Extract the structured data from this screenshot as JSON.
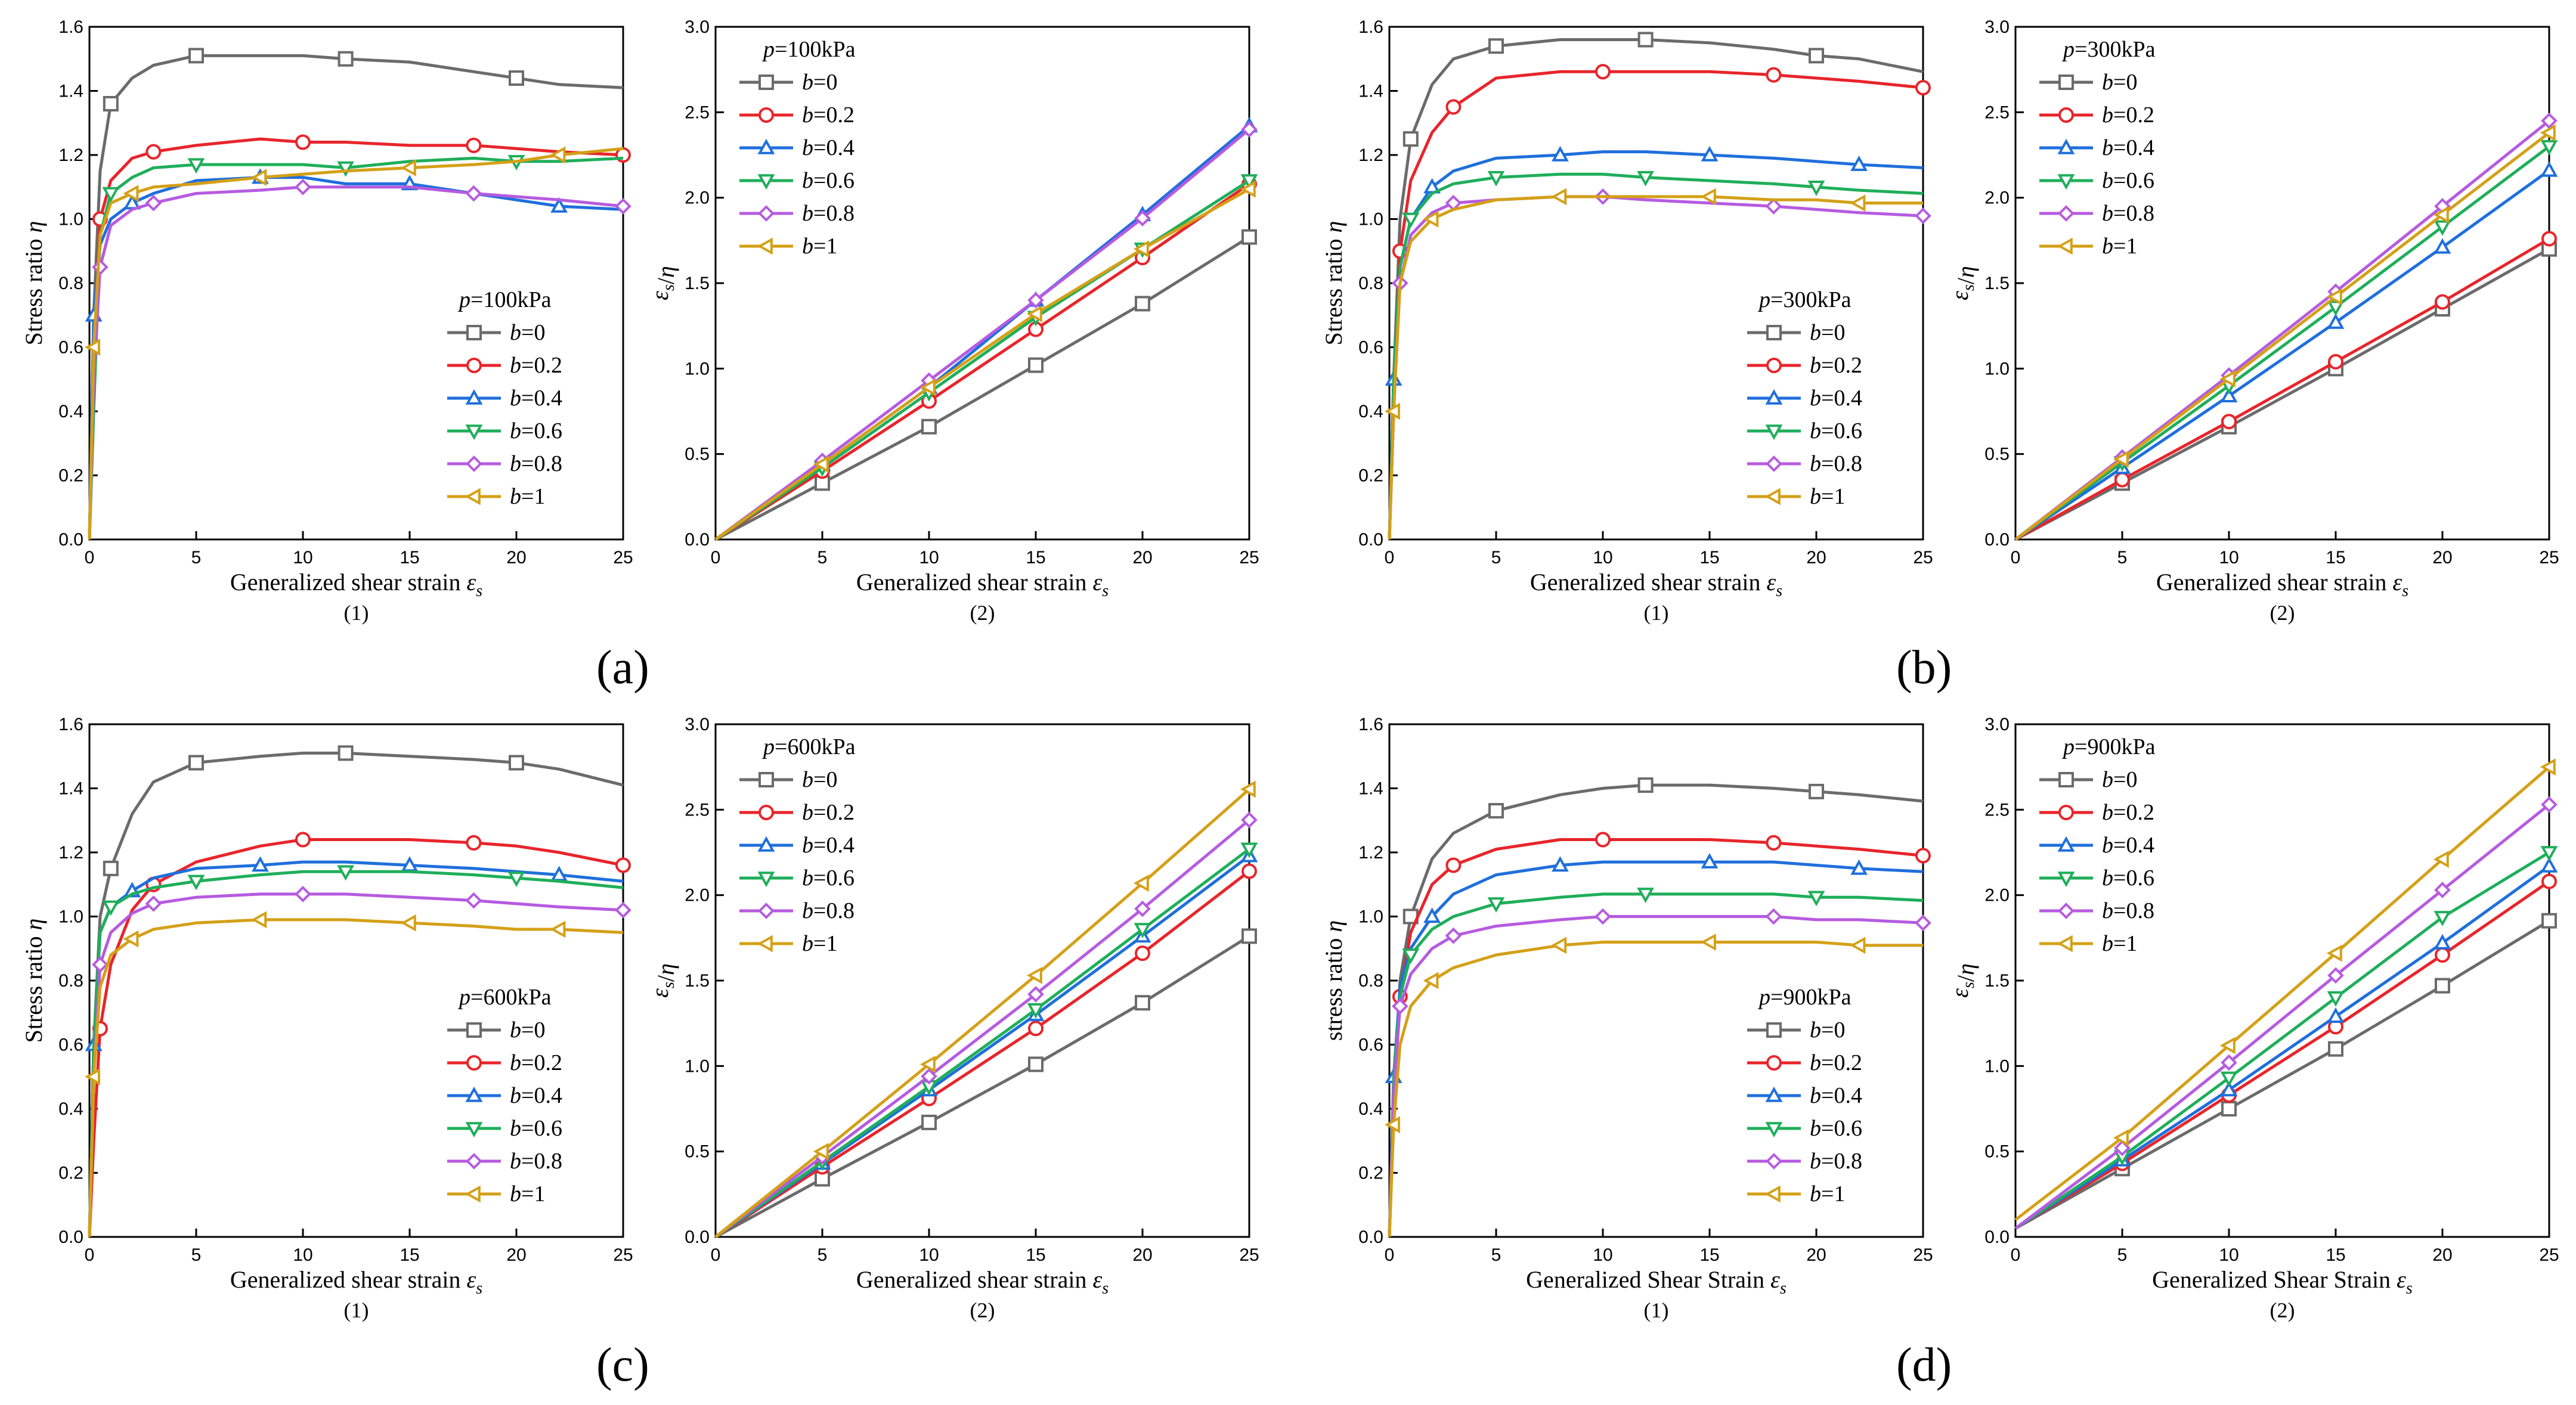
{
  "series_styles": [
    {
      "name": "b=0",
      "color": "#6b6b6b",
      "marker": "square"
    },
    {
      "name": "b=0.2",
      "color": "#e8252b",
      "marker": "circle"
    },
    {
      "name": "b=0.4",
      "color": "#1f6fdc",
      "marker": "triangle-up"
    },
    {
      "name": "b=0.6",
      "color": "#1fae5a",
      "marker": "triangle-down"
    },
    {
      "name": "b=0.8",
      "color": "#b65be0",
      "marker": "diamond"
    },
    {
      "name": "b=1",
      "color": "#d4a017",
      "marker": "triangle-left"
    }
  ],
  "panels": [
    {
      "letter": "(a)",
      "pressure": "p=100kPa"
    },
    {
      "letter": "(b)",
      "pressure": "p=300kPa"
    },
    {
      "letter": "(c)",
      "pressure": "p=600kPa"
    },
    {
      "letter": "(d)",
      "pressure": "p=900kPa"
    }
  ],
  "chart_data": [
    {
      "type": "line",
      "panel": "(a)",
      "sublabel": "(1)",
      "legend_title": "p=100kPa",
      "legend_position": "bottom-right",
      "xlabel": "Generalized shear strain  εs",
      "ylabel": "Stress ratio η",
      "xlim": [
        0,
        25
      ],
      "ylim": [
        0,
        1.6
      ],
      "xticks": [
        0,
        5,
        10,
        15,
        20,
        25
      ],
      "yticks": [
        0,
        0.2,
        0.4,
        0.6,
        0.8,
        1.0,
        1.2,
        1.4,
        1.6
      ],
      "x": [
        0,
        0.2,
        0.5,
        1,
        2,
        3,
        5,
        8,
        10,
        12,
        15,
        18,
        20,
        22,
        25
      ],
      "series": [
        {
          "name": "b=0",
          "values": [
            0,
            0.7,
            1.15,
            1.36,
            1.44,
            1.48,
            1.51,
            1.51,
            1.51,
            1.5,
            1.49,
            1.46,
            1.44,
            1.42,
            1.41
          ]
        },
        {
          "name": "b=0.2",
          "values": [
            0,
            0.6,
            1.0,
            1.12,
            1.19,
            1.21,
            1.23,
            1.25,
            1.24,
            1.24,
            1.23,
            1.23,
            1.22,
            1.21,
            1.2
          ]
        },
        {
          "name": "b=0.4",
          "values": [
            0,
            0.7,
            0.92,
            1.0,
            1.05,
            1.08,
            1.12,
            1.13,
            1.13,
            1.11,
            1.11,
            1.08,
            1.06,
            1.04,
            1.03
          ]
        },
        {
          "name": "b=0.6",
          "values": [
            0,
            0.4,
            0.95,
            1.08,
            1.13,
            1.16,
            1.17,
            1.17,
            1.17,
            1.16,
            1.18,
            1.19,
            1.18,
            1.18,
            1.19
          ]
        },
        {
          "name": "b=0.8",
          "values": [
            0,
            0.5,
            0.85,
            0.98,
            1.03,
            1.05,
            1.08,
            1.09,
            1.1,
            1.1,
            1.1,
            1.08,
            1.07,
            1.06,
            1.04
          ]
        },
        {
          "name": "b=1",
          "values": [
            0,
            0.6,
            0.95,
            1.05,
            1.08,
            1.1,
            1.11,
            1.13,
            1.14,
            1.15,
            1.16,
            1.17,
            1.18,
            1.2,
            1.22
          ]
        }
      ]
    },
    {
      "type": "line",
      "panel": "(a)",
      "sublabel": "(2)",
      "legend_title": "p=100kPa",
      "legend_position": "top-left",
      "xlabel": "Generalized shear strain  εs",
      "ylabel": "εs/η",
      "xlim": [
        0,
        25
      ],
      "ylim": [
        0,
        3.0
      ],
      "xticks": [
        0,
        5,
        10,
        15,
        20,
        25
      ],
      "yticks": [
        0,
        0.5,
        1.0,
        1.5,
        2.0,
        2.5,
        3.0
      ],
      "x": [
        0,
        5,
        10,
        15,
        20,
        25
      ],
      "series": [
        {
          "name": "b=0",
          "values": [
            0,
            0.33,
            0.66,
            1.02,
            1.38,
            1.77
          ]
        },
        {
          "name": "b=0.2",
          "values": [
            0,
            0.4,
            0.81,
            1.23,
            1.65,
            2.08
          ]
        },
        {
          "name": "b=0.4",
          "values": [
            0,
            0.44,
            0.89,
            1.4,
            1.9,
            2.42
          ]
        },
        {
          "name": "b=0.6",
          "values": [
            0,
            0.42,
            0.86,
            1.3,
            1.7,
            2.1
          ]
        },
        {
          "name": "b=0.8",
          "values": [
            0,
            0.46,
            0.93,
            1.4,
            1.88,
            2.4
          ]
        },
        {
          "name": "b=1",
          "values": [
            0,
            0.44,
            0.89,
            1.32,
            1.7,
            2.05
          ]
        }
      ]
    },
    {
      "type": "line",
      "panel": "(b)",
      "sublabel": "(1)",
      "legend_title": "p=300kPa",
      "legend_position": "bottom-right",
      "xlabel": "Generalized shear strain  εs",
      "ylabel": "Stress ratio η",
      "xlim": [
        0,
        25
      ],
      "ylim": [
        0,
        1.6
      ],
      "xticks": [
        0,
        5,
        10,
        15,
        20,
        25
      ],
      "yticks": [
        0,
        0.2,
        0.4,
        0.6,
        0.8,
        1.0,
        1.2,
        1.4,
        1.6
      ],
      "x": [
        0,
        0.2,
        0.5,
        1,
        2,
        3,
        5,
        8,
        10,
        12,
        15,
        18,
        20,
        22,
        25
      ],
      "series": [
        {
          "name": "b=0",
          "values": [
            0,
            0.5,
            1.0,
            1.25,
            1.42,
            1.5,
            1.54,
            1.56,
            1.56,
            1.56,
            1.55,
            1.53,
            1.51,
            1.5,
            1.46
          ]
        },
        {
          "name": "b=0.2",
          "values": [
            0,
            0.4,
            0.9,
            1.12,
            1.27,
            1.35,
            1.44,
            1.46,
            1.46,
            1.46,
            1.46,
            1.45,
            1.44,
            1.43,
            1.41
          ]
        },
        {
          "name": "b=0.4",
          "values": [
            0,
            0.5,
            0.85,
            1.0,
            1.1,
            1.15,
            1.19,
            1.2,
            1.21,
            1.21,
            1.2,
            1.19,
            1.18,
            1.17,
            1.16
          ]
        },
        {
          "name": "b=0.6",
          "values": [
            0,
            0.5,
            0.85,
            1.0,
            1.08,
            1.11,
            1.13,
            1.14,
            1.14,
            1.13,
            1.12,
            1.11,
            1.1,
            1.09,
            1.08
          ]
        },
        {
          "name": "b=0.8",
          "values": [
            0,
            0.4,
            0.8,
            0.95,
            1.02,
            1.05,
            1.06,
            1.07,
            1.07,
            1.06,
            1.05,
            1.04,
            1.03,
            1.02,
            1.01
          ]
        },
        {
          "name": "b=1",
          "values": [
            0,
            0.4,
            0.8,
            0.93,
            1.0,
            1.03,
            1.06,
            1.07,
            1.07,
            1.07,
            1.07,
            1.06,
            1.06,
            1.05,
            1.05
          ]
        }
      ]
    },
    {
      "type": "line",
      "panel": "(b)",
      "sublabel": "(2)",
      "legend_title": "p=300kPa",
      "legend_position": "top-left",
      "xlabel": "Generalized shear strain  εs",
      "ylabel": "εs/η",
      "xlim": [
        0,
        25
      ],
      "ylim": [
        0,
        3.0
      ],
      "xticks": [
        0,
        5,
        10,
        15,
        20,
        25
      ],
      "yticks": [
        0,
        0.5,
        1.0,
        1.5,
        2.0,
        2.5,
        3.0
      ],
      "x": [
        0,
        5,
        10,
        15,
        20,
        25
      ],
      "series": [
        {
          "name": "b=0",
          "values": [
            0,
            0.33,
            0.66,
            1.0,
            1.35,
            1.7
          ]
        },
        {
          "name": "b=0.2",
          "values": [
            0,
            0.35,
            0.69,
            1.04,
            1.39,
            1.76
          ]
        },
        {
          "name": "b=0.4",
          "values": [
            0,
            0.42,
            0.84,
            1.27,
            1.71,
            2.16
          ]
        },
        {
          "name": "b=0.6",
          "values": [
            0,
            0.45,
            0.9,
            1.36,
            1.83,
            2.3
          ]
        },
        {
          "name": "b=0.8",
          "values": [
            0,
            0.48,
            0.96,
            1.45,
            1.95,
            2.45
          ]
        },
        {
          "name": "b=1",
          "values": [
            0,
            0.47,
            0.94,
            1.42,
            1.9,
            2.38
          ]
        }
      ]
    },
    {
      "type": "line",
      "panel": "(c)",
      "sublabel": "(1)",
      "legend_title": "p=600kPa",
      "legend_position": "bottom-right",
      "xlabel": "Generalized shear strain  εs",
      "ylabel": "Stress ratio η",
      "xlim": [
        0,
        25
      ],
      "ylim": [
        0,
        1.6
      ],
      "xticks": [
        0,
        5,
        10,
        15,
        20,
        25
      ],
      "yticks": [
        0,
        0.2,
        0.4,
        0.6,
        0.8,
        1.0,
        1.2,
        1.4,
        1.6
      ],
      "x": [
        0,
        0.2,
        0.5,
        1,
        2,
        3,
        5,
        8,
        10,
        12,
        15,
        18,
        20,
        22,
        25
      ],
      "series": [
        {
          "name": "b=0",
          "values": [
            0,
            0.6,
            1.0,
            1.15,
            1.32,
            1.42,
            1.48,
            1.5,
            1.51,
            1.51,
            1.5,
            1.49,
            1.48,
            1.46,
            1.41
          ]
        },
        {
          "name": "b=0.2",
          "values": [
            0,
            0.3,
            0.65,
            0.85,
            1.02,
            1.1,
            1.17,
            1.22,
            1.24,
            1.24,
            1.24,
            1.23,
            1.22,
            1.2,
            1.16
          ]
        },
        {
          "name": "b=0.4",
          "values": [
            0,
            0.6,
            0.95,
            1.03,
            1.08,
            1.12,
            1.15,
            1.16,
            1.17,
            1.17,
            1.16,
            1.15,
            1.14,
            1.13,
            1.11
          ]
        },
        {
          "name": "b=0.6",
          "values": [
            0,
            0.6,
            0.95,
            1.03,
            1.07,
            1.09,
            1.11,
            1.13,
            1.14,
            1.14,
            1.14,
            1.13,
            1.12,
            1.11,
            1.09
          ]
        },
        {
          "name": "b=0.8",
          "values": [
            0,
            0.5,
            0.85,
            0.95,
            1.01,
            1.04,
            1.06,
            1.07,
            1.07,
            1.07,
            1.06,
            1.05,
            1.04,
            1.03,
            1.02
          ]
        },
        {
          "name": "b=1",
          "values": [
            0,
            0.5,
            0.78,
            0.88,
            0.93,
            0.96,
            0.98,
            0.99,
            0.99,
            0.99,
            0.98,
            0.97,
            0.96,
            0.96,
            0.95
          ]
        }
      ]
    },
    {
      "type": "line",
      "panel": "(c)",
      "sublabel": "(2)",
      "legend_title": "p=600kPa",
      "legend_position": "top-left",
      "xlabel": "Generalized shear strain  εs",
      "ylabel": "εs/η",
      "xlim": [
        0,
        25
      ],
      "ylim": [
        0,
        3.0
      ],
      "xticks": [
        0,
        5,
        10,
        15,
        20,
        25
      ],
      "yticks": [
        0,
        0.5,
        1.0,
        1.5,
        2.0,
        2.5,
        3.0
      ],
      "x": [
        0,
        5,
        10,
        15,
        20,
        25
      ],
      "series": [
        {
          "name": "b=0",
          "values": [
            0,
            0.34,
            0.67,
            1.01,
            1.37,
            1.76
          ]
        },
        {
          "name": "b=0.2",
          "values": [
            0,
            0.41,
            0.81,
            1.22,
            1.66,
            2.14
          ]
        },
        {
          "name": "b=0.4",
          "values": [
            0,
            0.43,
            0.86,
            1.3,
            1.76,
            2.23
          ]
        },
        {
          "name": "b=0.6",
          "values": [
            0,
            0.44,
            0.88,
            1.33,
            1.8,
            2.27
          ]
        },
        {
          "name": "b=0.8",
          "values": [
            0,
            0.47,
            0.94,
            1.42,
            1.92,
            2.44
          ]
        },
        {
          "name": "b=1",
          "values": [
            0,
            0.5,
            1.01,
            1.53,
            2.07,
            2.62
          ]
        }
      ]
    },
    {
      "type": "line",
      "panel": "(d)",
      "sublabel": "(1)",
      "legend_title": "p=900kPa",
      "legend_position": "bottom-right",
      "xlabel": "Generalized Shear Strain  εs",
      "ylabel": "stress ratio η",
      "xlim": [
        0,
        25
      ],
      "ylim": [
        0,
        1.6
      ],
      "xticks": [
        0,
        5,
        10,
        15,
        20,
        25
      ],
      "yticks": [
        0,
        0.2,
        0.4,
        0.6,
        0.8,
        1.0,
        1.2,
        1.4,
        1.6
      ],
      "x": [
        0,
        0.2,
        0.5,
        1,
        2,
        3,
        5,
        8,
        10,
        12,
        15,
        18,
        20,
        22,
        25
      ],
      "series": [
        {
          "name": "b=0",
          "values": [
            0,
            0.4,
            0.8,
            1.0,
            1.18,
            1.26,
            1.33,
            1.38,
            1.4,
            1.41,
            1.41,
            1.4,
            1.39,
            1.38,
            1.36
          ]
        },
        {
          "name": "b=0.2",
          "values": [
            0,
            0.4,
            0.75,
            0.95,
            1.1,
            1.16,
            1.21,
            1.24,
            1.24,
            1.24,
            1.24,
            1.23,
            1.22,
            1.21,
            1.19
          ]
        },
        {
          "name": "b=0.4",
          "values": [
            0,
            0.5,
            0.78,
            0.9,
            1.0,
            1.07,
            1.13,
            1.16,
            1.17,
            1.17,
            1.17,
            1.17,
            1.16,
            1.15,
            1.14
          ]
        },
        {
          "name": "b=0.6",
          "values": [
            0,
            0.5,
            0.75,
            0.88,
            0.96,
            1.0,
            1.04,
            1.06,
            1.07,
            1.07,
            1.07,
            1.07,
            1.06,
            1.06,
            1.05
          ]
        },
        {
          "name": "b=0.8",
          "values": [
            0,
            0.45,
            0.72,
            0.82,
            0.9,
            0.94,
            0.97,
            0.99,
            1.0,
            1.0,
            1.0,
            1.0,
            0.99,
            0.99,
            0.98
          ]
        },
        {
          "name": "b=1",
          "values": [
            0,
            0.35,
            0.6,
            0.72,
            0.8,
            0.84,
            0.88,
            0.91,
            0.92,
            0.92,
            0.92,
            0.92,
            0.92,
            0.91,
            0.91
          ]
        }
      ]
    },
    {
      "type": "line",
      "panel": "(d)",
      "sublabel": "(2)",
      "legend_title": "p=900kPa",
      "legend_position": "top-left",
      "xlabel": "Generalized Shear Strain  εs",
      "ylabel": "εs/η",
      "xlim": [
        0,
        25
      ],
      "ylim": [
        0,
        3.0
      ],
      "xticks": [
        0,
        5,
        10,
        15,
        20,
        25
      ],
      "yticks": [
        0,
        0.5,
        1.0,
        1.5,
        2.0,
        2.5,
        3.0
      ],
      "x": [
        0,
        5,
        10,
        15,
        20,
        25
      ],
      "series": [
        {
          "name": "b=0",
          "values": [
            0.05,
            0.4,
            0.75,
            1.1,
            1.47,
            1.85
          ]
        },
        {
          "name": "b=0.2",
          "values": [
            0.05,
            0.43,
            0.83,
            1.23,
            1.65,
            2.08
          ]
        },
        {
          "name": "b=0.4",
          "values": [
            0.05,
            0.45,
            0.86,
            1.29,
            1.72,
            2.17
          ]
        },
        {
          "name": "b=0.6",
          "values": [
            0.05,
            0.47,
            0.93,
            1.4,
            1.87,
            2.25
          ]
        },
        {
          "name": "b=0.8",
          "values": [
            0.05,
            0.52,
            1.02,
            1.53,
            2.03,
            2.53
          ]
        },
        {
          "name": "b=1",
          "values": [
            0.1,
            0.58,
            1.12,
            1.66,
            2.21,
            2.75
          ]
        }
      ]
    }
  ]
}
